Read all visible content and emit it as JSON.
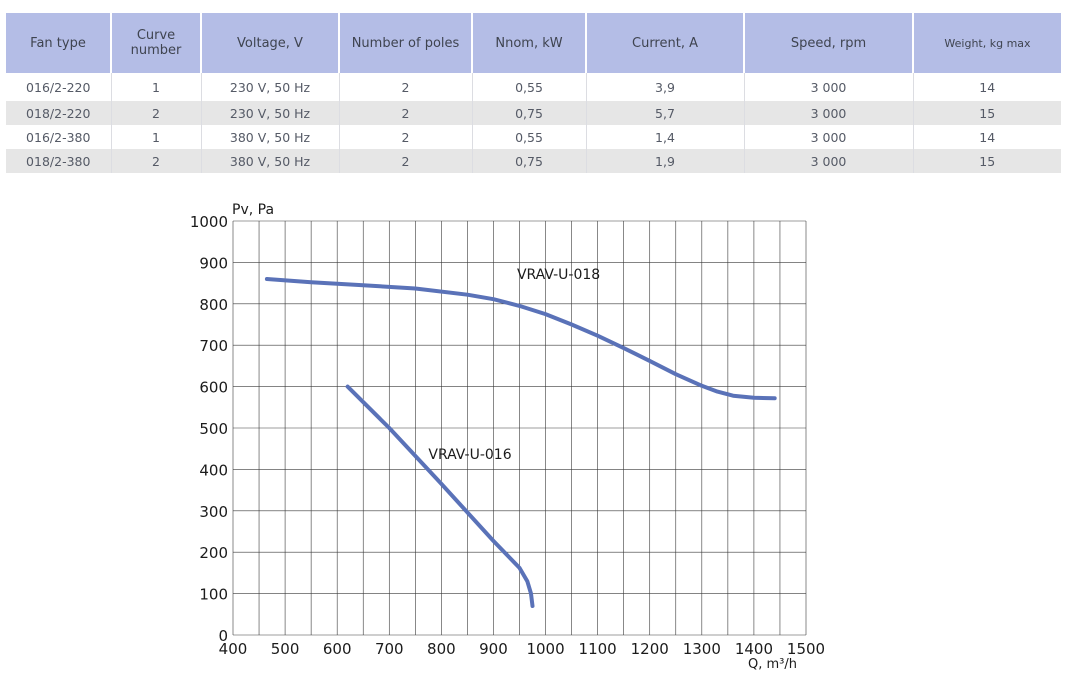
{
  "table": {
    "headers": [
      "Fan type",
      "Curve number",
      "Voltage, V",
      "Number of poles",
      "Nnom, kW",
      "Current, A",
      "Speed, rpm",
      "Weight, kg max"
    ],
    "rows": [
      [
        "016/2-220",
        "1",
        "230 V, 50 Hz",
        "2",
        "0,55",
        "3,9",
        "3 000",
        "14"
      ],
      [
        "018/2-220",
        "2",
        "230 V, 50 Hz",
        "2",
        "0,75",
        "5,7",
        "3 000",
        "15"
      ],
      [
        "016/2-380",
        "1",
        "380 V, 50 Hz",
        "2",
        "0,55",
        "1,4",
        "3 000",
        "14"
      ],
      [
        "018/2-380",
        "2",
        "380 V, 50 Hz",
        "2",
        "0,75",
        "1,9",
        "3 000",
        "15"
      ]
    ]
  },
  "chart_data": {
    "type": "line",
    "ylabel": "Pv, Pa",
    "xlabel": "Q, m³/h",
    "xlim": [
      400,
      1500
    ],
    "ylim": [
      0,
      1000
    ],
    "x_ticks": [
      400,
      500,
      600,
      700,
      800,
      900,
      1000,
      1100,
      1200,
      1300,
      1400,
      1500
    ],
    "y_ticks": [
      0,
      100,
      200,
      300,
      400,
      500,
      600,
      700,
      800,
      900,
      1000
    ],
    "grid": true,
    "line_color": "#5a72b8",
    "series": [
      {
        "name": "VRAV-U-018",
        "label_anchor": {
          "x": 1025,
          "y": 860
        },
        "points": [
          [
            465,
            860
          ],
          [
            550,
            852
          ],
          [
            650,
            845
          ],
          [
            750,
            837
          ],
          [
            850,
            822
          ],
          [
            900,
            811
          ],
          [
            950,
            795
          ],
          [
            1000,
            775
          ],
          [
            1050,
            750
          ],
          [
            1100,
            723
          ],
          [
            1150,
            693
          ],
          [
            1200,
            662
          ],
          [
            1250,
            630
          ],
          [
            1300,
            602
          ],
          [
            1330,
            588
          ],
          [
            1360,
            578
          ],
          [
            1400,
            573
          ],
          [
            1440,
            572
          ]
        ]
      },
      {
        "name": "VRAV-U-016",
        "label_anchor": {
          "x": 855,
          "y": 425
        },
        "points": [
          [
            620,
            600
          ],
          [
            700,
            500
          ],
          [
            800,
            365
          ],
          [
            900,
            227
          ],
          [
            950,
            162
          ],
          [
            965,
            130
          ],
          [
            972,
            100
          ],
          [
            975,
            70
          ]
        ]
      }
    ]
  }
}
